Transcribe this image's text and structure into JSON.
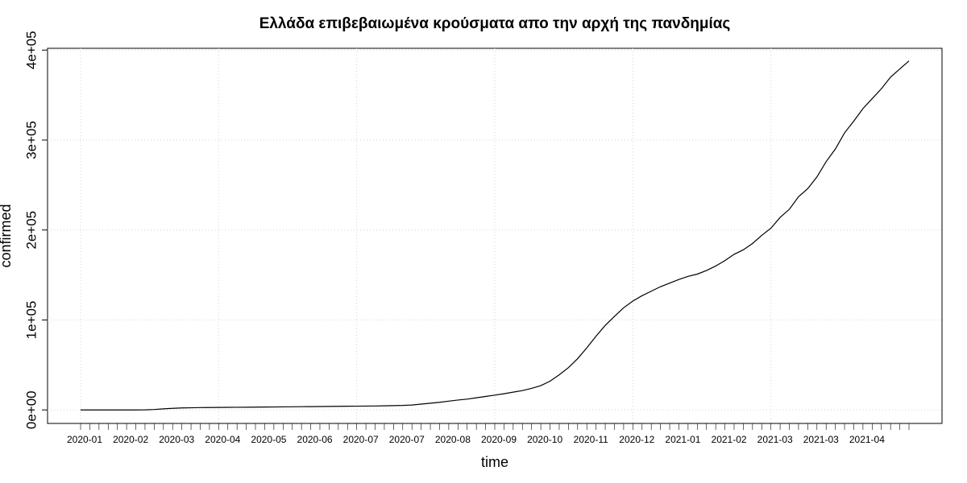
{
  "chart_data": {
    "type": "line",
    "title": "Ελλάδα επιβεβαιωμένα κρούσματα απο την αρχή της πανδημίας",
    "x_label": "time",
    "y_label": "confirmed",
    "categories": [
      "2020-01",
      null,
      null,
      null,
      null,
      "2020-02",
      null,
      null,
      null,
      null,
      "2020-03",
      null,
      null,
      null,
      null,
      "2020-04",
      null,
      null,
      null,
      null,
      "2020-05",
      null,
      null,
      null,
      null,
      "2020-06",
      null,
      null,
      null,
      null,
      "2020-07",
      null,
      null,
      null,
      null,
      "2020-07",
      null,
      null,
      null,
      null,
      "2020-08",
      null,
      null,
      null,
      null,
      "2020-09",
      null,
      null,
      null,
      null,
      "2020-10",
      null,
      null,
      null,
      null,
      "2020-11",
      null,
      null,
      null,
      null,
      "2020-12",
      null,
      null,
      null,
      null,
      "2021-01",
      null,
      null,
      null,
      null,
      "2021-02",
      null,
      null,
      null,
      null,
      "2021-03",
      null,
      null,
      null,
      null,
      "2021-03",
      null,
      null,
      null,
      null,
      "2021-04",
      null,
      null,
      null,
      null,
      null
    ],
    "values": [
      0,
      0,
      0,
      0,
      0,
      0,
      7,
      100,
      500,
      1200,
      1800,
      2200,
      2400,
      2600,
      2700,
      2800,
      2900,
      2950,
      3000,
      3100,
      3200,
      3300,
      3400,
      3500,
      3600,
      3700,
      3800,
      3900,
      4000,
      4100,
      4200,
      4300,
      4400,
      4600,
      4800,
      5000,
      5500,
      6500,
      7500,
      8500,
      9800,
      11000,
      12000,
      13500,
      15000,
      16500,
      18000,
      19800,
      21500,
      24000,
      27000,
      32000,
      39000,
      47000,
      57000,
      69000,
      82000,
      94000,
      104000,
      113600,
      121000,
      127000,
      132000,
      137000,
      141000,
      145000,
      148500,
      151000,
      155000,
      160000,
      166000,
      173000,
      178000,
      185000,
      194000,
      202000,
      214000,
      223000,
      237000,
      246000,
      259000,
      276000,
      290000,
      308000,
      321000,
      335000,
      346000,
      357000,
      370000,
      379000,
      388000
    ],
    "color": "#000000",
    "ylim": [
      -15000,
      402000
    ],
    "yticks": [
      {
        "value": 0,
        "label": "0e+00"
      },
      {
        "value": 100000,
        "label": "1e+05"
      },
      {
        "value": 200000,
        "label": "2e+05"
      },
      {
        "value": 300000,
        "label": "3e+05"
      },
      {
        "value": 400000,
        "label": "4e+05"
      }
    ],
    "grid": true
  }
}
